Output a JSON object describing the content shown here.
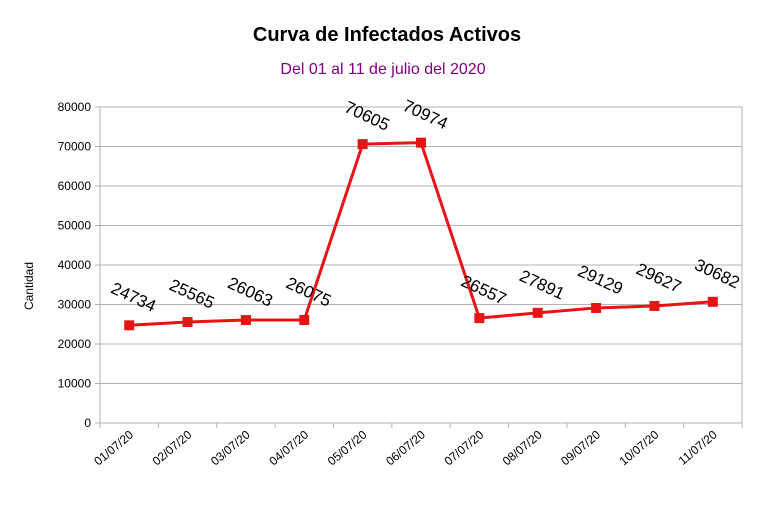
{
  "chart_data": {
    "type": "line",
    "title": "Curva de Infectados Activos",
    "subtitle": "Del 01 al 11 de julio del 2020",
    "xlabel": "",
    "ylabel": "Cantidad",
    "categories": [
      "01/07/20",
      "02/07/20",
      "03/07/20",
      "04/07/20",
      "05/07/20",
      "06/07/20",
      "07/07/20",
      "08/07/20",
      "09/07/20",
      "10/07/20",
      "11/07/20"
    ],
    "series": [
      {
        "values": [
          24734,
          25565,
          26063,
          26075,
          70605,
          70974,
          26557,
          27891,
          29129,
          29627,
          30682
        ]
      }
    ],
    "ylim": [
      0,
      80000
    ],
    "yticks": [
      0,
      10000,
      20000,
      30000,
      40000,
      50000,
      60000,
      70000,
      80000
    ],
    "grid": true,
    "legend": "none",
    "line_color": "#e81414",
    "marker_color": "#e81414",
    "grid_color": "#b3b3b3"
  }
}
